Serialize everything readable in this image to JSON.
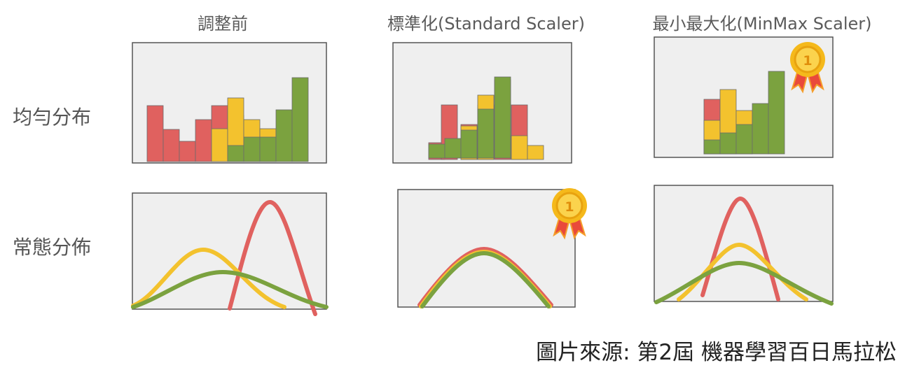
{
  "columns": [
    {
      "title": "調整前"
    },
    {
      "title": "標準化(Standard Scaler)"
    },
    {
      "title": "最小最大化(MinMax Scaler)"
    }
  ],
  "rows": [
    {
      "label": "均勻分布"
    },
    {
      "label": "常態分佈"
    }
  ],
  "source": "圖片來源: 第2屆 機器學習百日馬拉松",
  "colors": {
    "red": "#e0615f",
    "yellow": "#f3c22e",
    "green": "#7ba23f",
    "panel_bg": "#efefef",
    "panel_border": "#555555",
    "medal_gold": "#f5b91b",
    "medal_ribbon_red": "#e94a3b",
    "medal_ribbon_orange": "#f59d2a"
  },
  "badges": [
    {
      "icon": "medal-icon",
      "number": "1",
      "row": 0,
      "column": 2
    },
    {
      "icon": "medal-icon",
      "number": "1",
      "row": 1,
      "column": 1
    }
  ]
}
